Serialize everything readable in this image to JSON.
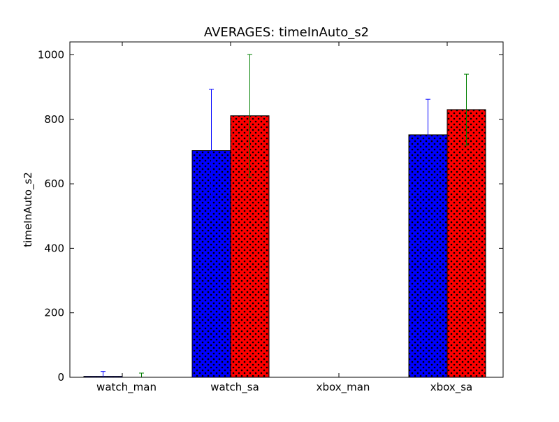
{
  "chart_data": {
    "type": "bar",
    "title": "AVERAGES: timeInAuto_s2",
    "xlabel": "",
    "ylabel": "timeInAuto_s2",
    "categories": [
      "watch_man",
      "watch_sa",
      "xbox_man",
      "xbox_sa"
    ],
    "ylim": [
      0,
      1040
    ],
    "yticks": [
      0,
      200,
      400,
      600,
      800,
      1000
    ],
    "grid": false,
    "series": [
      {
        "color": "#0000ff",
        "errorbar_color": "#0000ff",
        "hatch": "dots",
        "values": [
          3,
          703,
          0,
          752
        ],
        "errors": [
          15,
          190,
          0,
          110
        ]
      },
      {
        "color": "#ff0000",
        "errorbar_color": "#008000",
        "hatch": "dots",
        "values": [
          0,
          811,
          0,
          830
        ],
        "errors": [
          13,
          190,
          0,
          110
        ]
      }
    ]
  }
}
